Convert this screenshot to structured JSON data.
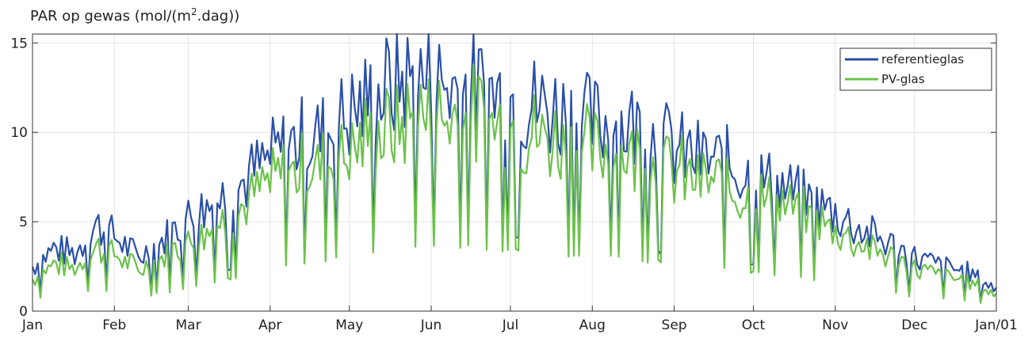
{
  "chart_data": {
    "type": "line",
    "title_parts": [
      "PAR op gewas (mol/(m",
      "2",
      ".dag))"
    ],
    "xlabel": "",
    "ylabel": "",
    "x_tick_labels": [
      "Jan",
      "Feb",
      "Mar",
      "Apr",
      "May",
      "Jun",
      "Jul",
      "Aug",
      "Sep",
      "Oct",
      "Nov",
      "Dec",
      "Jan/01"
    ],
    "x_tick_days": [
      0,
      31,
      59,
      90,
      120,
      151,
      181,
      212,
      243,
      273,
      304,
      334,
      365
    ],
    "xlim": [
      0,
      365
    ],
    "y_ticks": [
      0,
      5,
      10,
      15
    ],
    "ylim": [
      0,
      15.5
    ],
    "grid": true,
    "legend_position": "top-right",
    "series_names": [
      "referentieglas",
      "PV-glas"
    ],
    "series_colors": [
      "#2a4fa8",
      "#6cc24a"
    ],
    "anchor_days": [
      0,
      8,
      16,
      24,
      31,
      40,
      48,
      59,
      68,
      78,
      90,
      100,
      110,
      120,
      130,
      140,
      151,
      160,
      170,
      181,
      190,
      200,
      212,
      222,
      232,
      243,
      253,
      263,
      273,
      283,
      293,
      304,
      314,
      324,
      334,
      344,
      354,
      365
    ],
    "referentieglas_anchors": [
      2.5,
      3.5,
      3.2,
      4.8,
      4.2,
      3.0,
      3.8,
      5.2,
      6.0,
      7.0,
      8.5,
      9.5,
      9.8,
      11.0,
      12.0,
      13.0,
      12.8,
      12.5,
      12.3,
      12.0,
      11.5,
      11.2,
      10.5,
      10.5,
      10.2,
      9.0,
      8.5,
      8.2,
      7.5,
      7.0,
      6.2,
      5.5,
      4.5,
      3.8,
      3.0,
      2.5,
      2.2,
      1.2
    ],
    "pv_glas_anchors": [
      1.8,
      2.7,
      2.4,
      3.6,
      3.2,
      2.3,
      2.9,
      3.9,
      4.7,
      5.6,
      7.2,
      8.0,
      8.2,
      9.2,
      9.8,
      10.6,
      11.0,
      11.0,
      10.7,
      10.3,
      9.9,
      9.6,
      9.0,
      9.0,
      8.7,
      7.8,
      7.3,
      7.0,
      6.4,
      6.0,
      5.3,
      4.6,
      3.8,
      3.1,
      2.4,
      2.0,
      1.7,
      0.9
    ]
  }
}
